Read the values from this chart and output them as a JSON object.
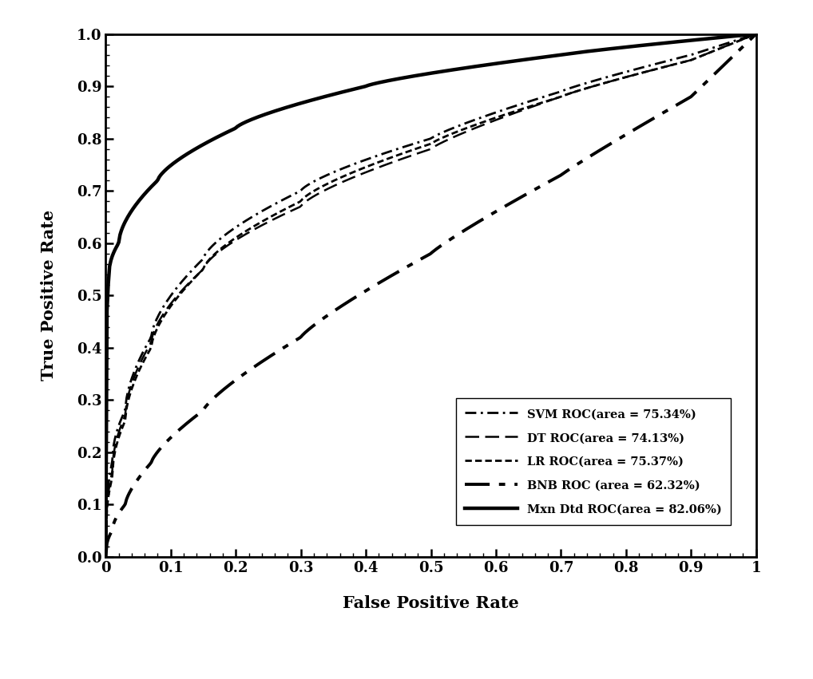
{
  "title": "",
  "xlabel": "False Positive Rate",
  "ylabel": "True Positive Rate",
  "xlim": [
    0,
    1.0
  ],
  "ylim": [
    0,
    1.0
  ],
  "xticks": [
    0,
    0.1,
    0.2,
    0.3,
    0.4,
    0.5,
    0.6,
    0.7,
    0.8,
    0.9,
    1
  ],
  "yticks": [
    0.0,
    0.1,
    0.2,
    0.3,
    0.4,
    0.5,
    0.6,
    0.7,
    0.8,
    0.9,
    1.0
  ],
  "legend": [
    {
      "label": "SVM ROC(area = 75.34%)",
      "color": "#000000"
    },
    {
      "label": "DT ROC(area = 74.13%)",
      "color": "#000000"
    },
    {
      "label": "LR ROC(area = 75.37%)",
      "color": "#000000"
    },
    {
      "label": "BNB ROC (area = 62.32%)",
      "color": "#000000"
    },
    {
      "label": "Mxn Dtd ROC(area = 82.06%)",
      "color": "#000000"
    }
  ],
  "background_color": "#ffffff",
  "tick_fontsize": 13,
  "label_fontsize": 15,
  "legend_fontsize": 10.5
}
